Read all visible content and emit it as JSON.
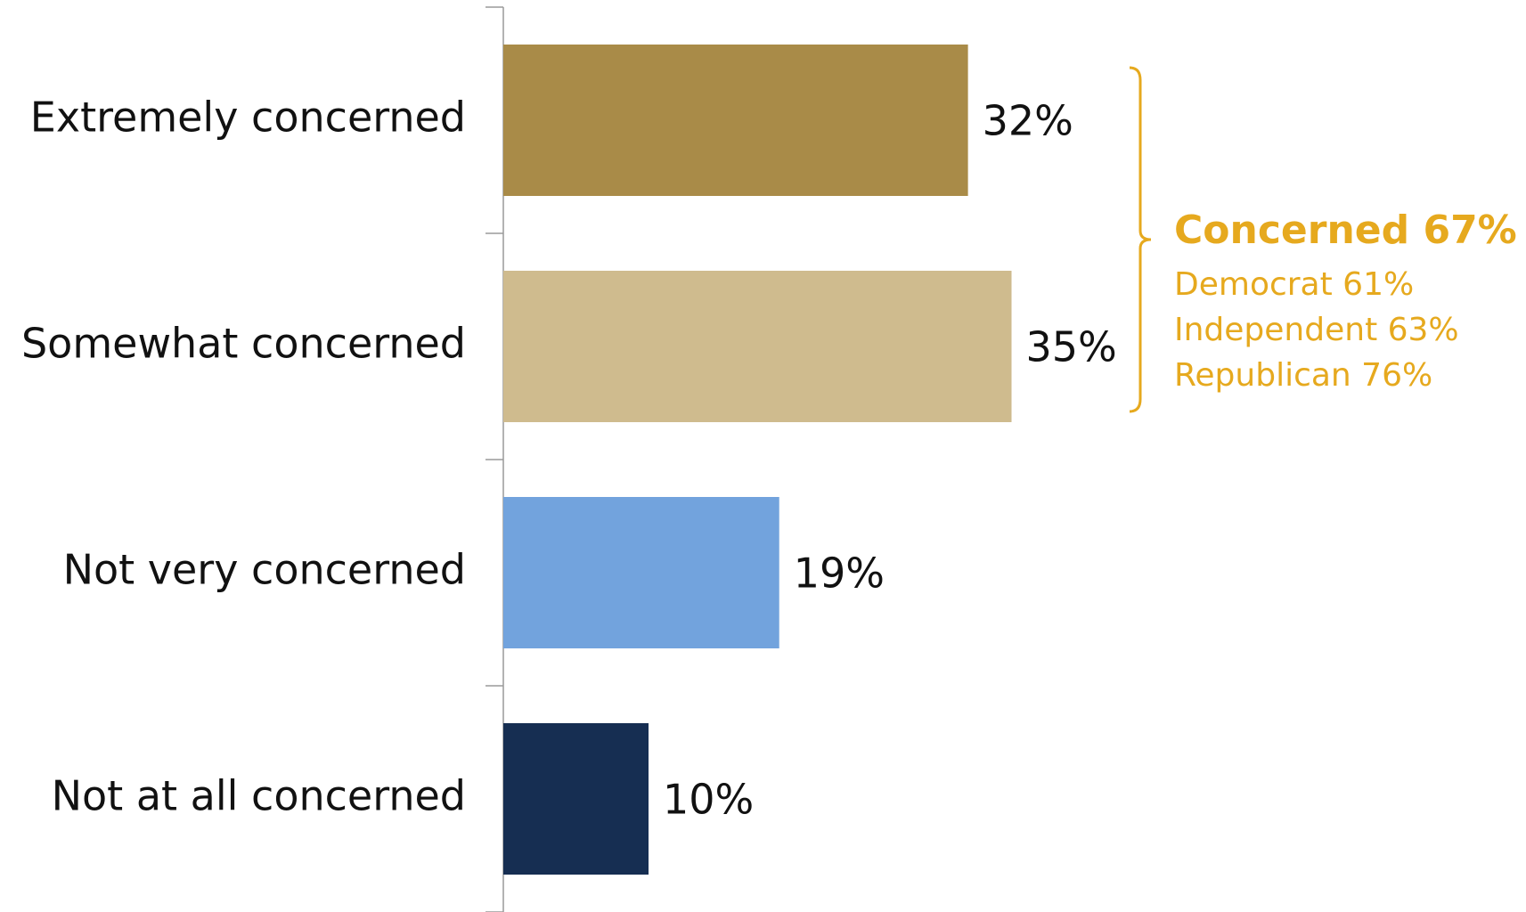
{
  "chart_data": {
    "type": "bar",
    "orientation": "horizontal",
    "categories": [
      "Extremely concerned",
      "Somewhat concerned",
      "Not very concerned",
      "Not at all concerned"
    ],
    "values": [
      32,
      35,
      19,
      10
    ],
    "value_labels": [
      "32%",
      "35%",
      "19%",
      "10%"
    ],
    "colors": [
      "#a98b48",
      "#cfbb8e",
      "#72a3dd",
      "#162e52"
    ],
    "title": "",
    "xlabel": "",
    "ylabel": "",
    "xlim": [
      0,
      100
    ],
    "grid": false,
    "legend": "none",
    "annotation": {
      "title": "Concerned 67%",
      "lines": [
        "Democrat 61%",
        "Independent 63%",
        "Republican 76%"
      ],
      "groups_categories": [
        "Extremely concerned",
        "Somewhat concerned"
      ],
      "color": "#e6a91e"
    }
  }
}
